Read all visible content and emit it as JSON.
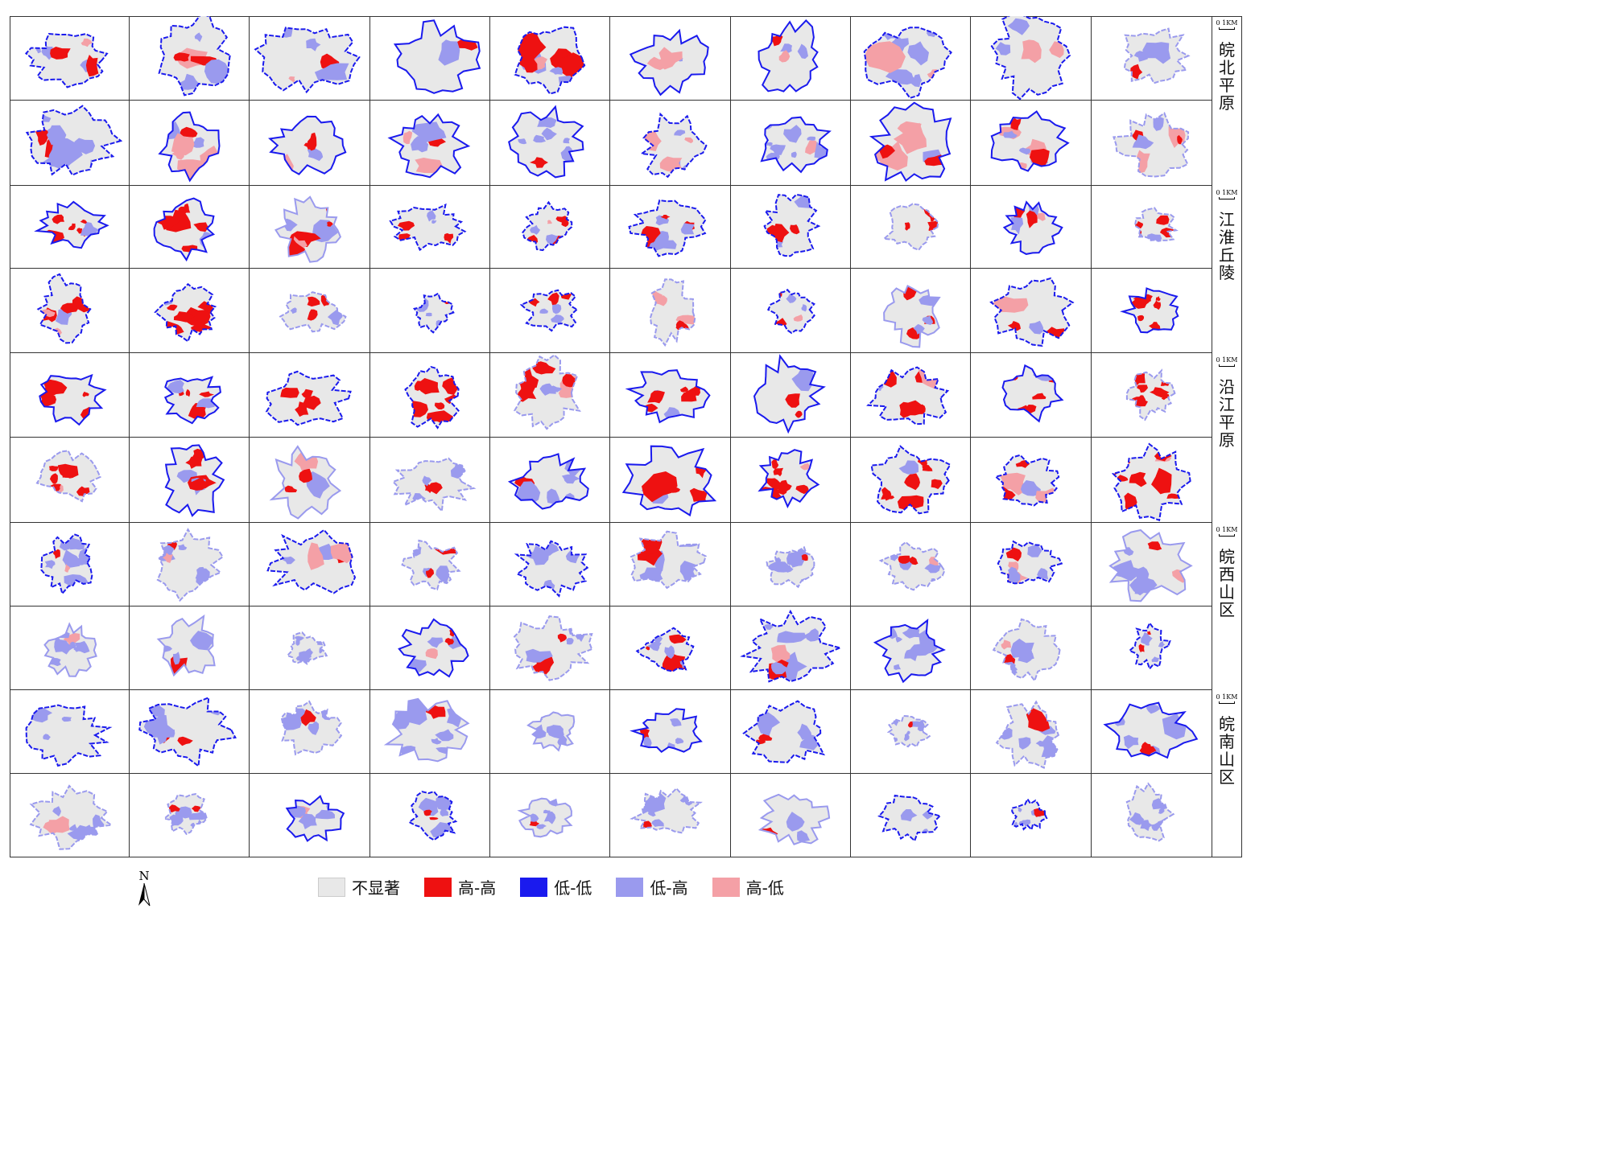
{
  "regions": [
    {
      "name": "皖北平原",
      "scale": "0 1KM"
    },
    {
      "name": "江淮丘陵",
      "scale": "0 1KM"
    },
    {
      "name": "沿江平原",
      "scale": "0 1KM"
    },
    {
      "name": "皖西山区",
      "scale": "0 1KM"
    },
    {
      "name": "皖南山区",
      "scale": "0 1KM"
    }
  ],
  "north_label": "N",
  "legend": [
    {
      "label": "不显著",
      "color": "#e8e8e8"
    },
    {
      "label": "高-高",
      "color": "#ee1111"
    },
    {
      "label": "低-低",
      "color": "#1a1aee"
    },
    {
      "label": "低-高",
      "color": "#9a9aee"
    },
    {
      "label": "高-低",
      "color": "#f4a0a6"
    }
  ]
}
